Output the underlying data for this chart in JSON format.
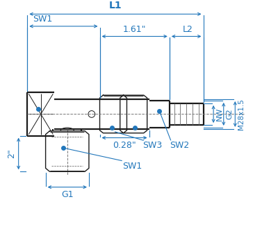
{
  "bg_color": "#ffffff",
  "line_color": "#1a1a1a",
  "dim_color": "#2277bb",
  "dot_color": "#2277bb",
  "fig_width": 4.0,
  "fig_height": 3.3,
  "labels": {
    "L1": "L1",
    "L2": "L2",
    "SW1_top": "SW1",
    "SW1_bot": "SW1",
    "SW2": "SW2",
    "SW3": "SW3",
    "NW": "NW",
    "G1": "G1",
    "G2": "G2",
    "M28": "M28x1.5",
    "dim_161": "1.61\"",
    "dim_028": "0.28\"",
    "dim_2in": "2\""
  }
}
